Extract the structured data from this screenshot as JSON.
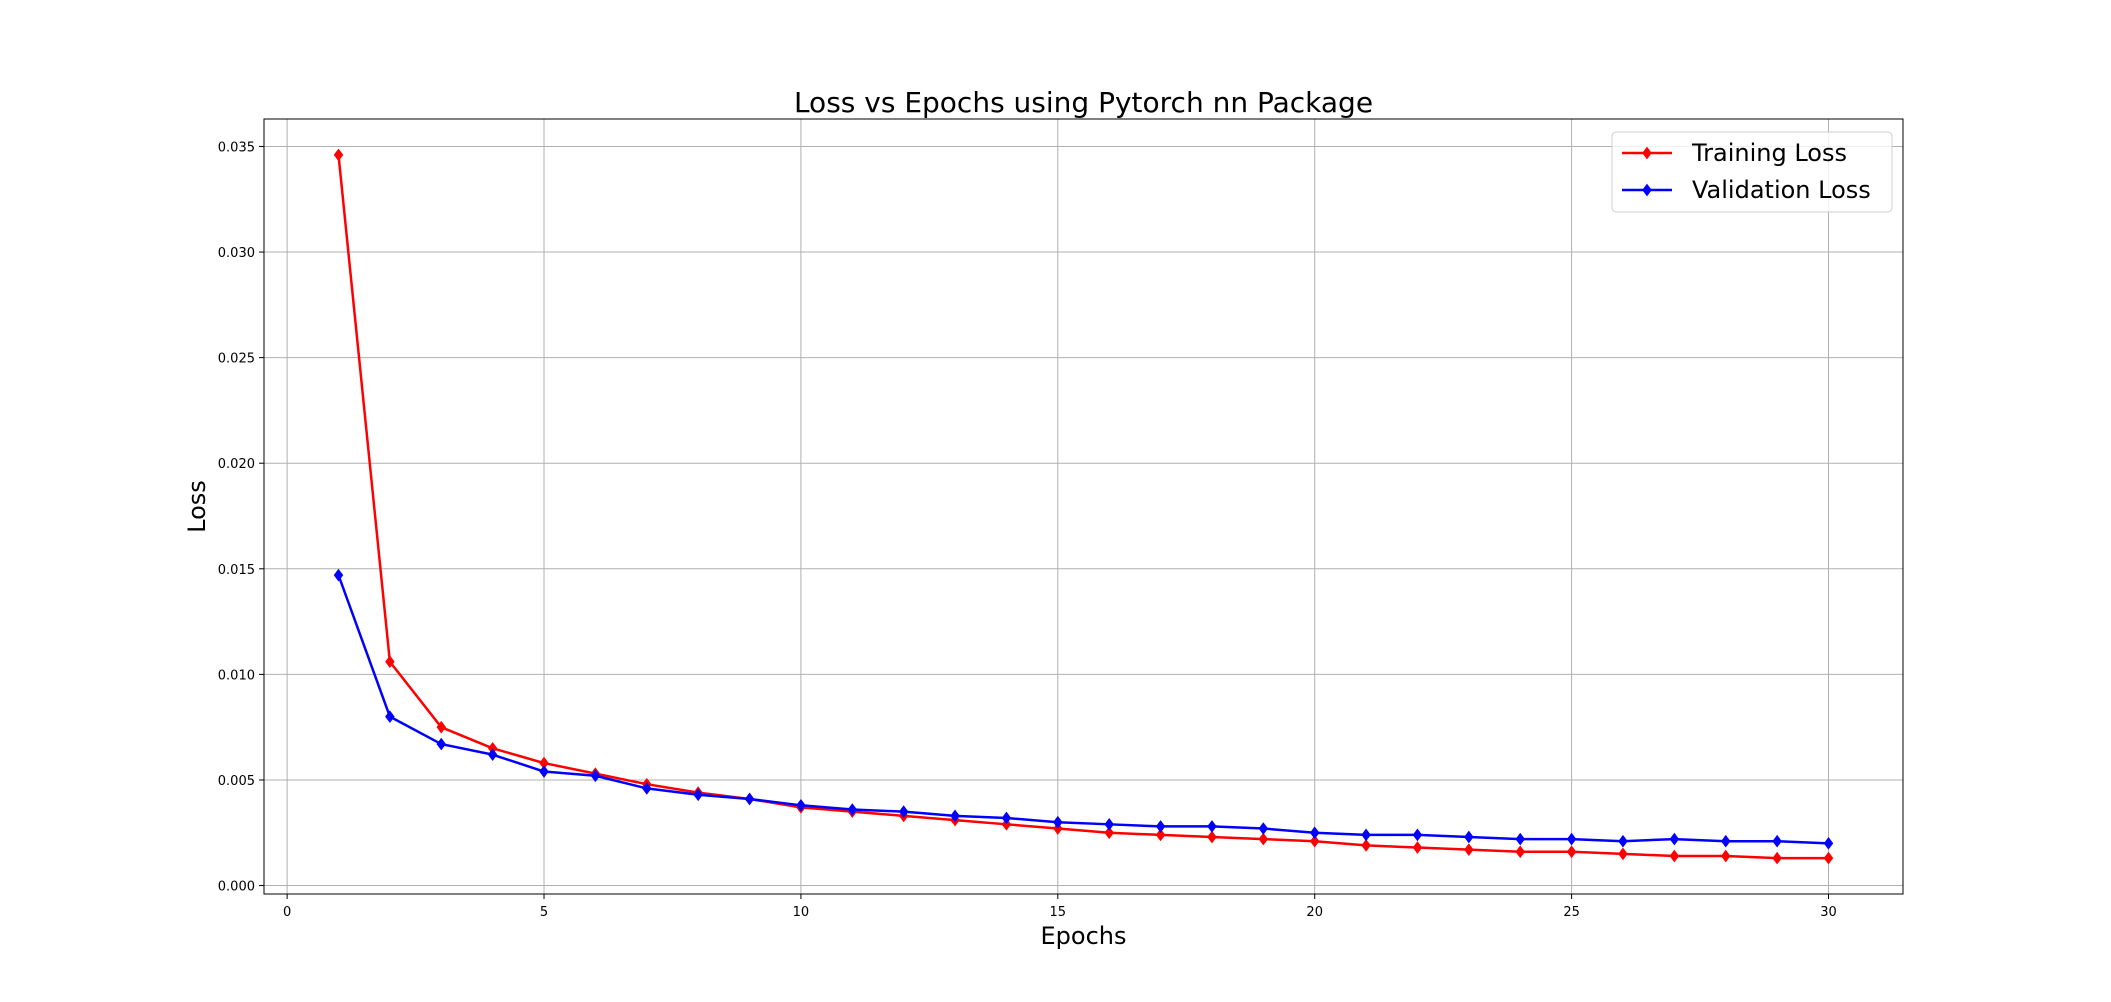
{
  "chart_data": {
    "type": "line",
    "title": "Loss vs Epochs using Pytorch nn Package",
    "xlabel": "Epochs",
    "ylabel": "Loss",
    "xlim": [
      -0.45,
      31.45
    ],
    "ylim": [
      -0.0004,
      0.0363
    ],
    "xticks": [
      0,
      5,
      10,
      15,
      20,
      25,
      30
    ],
    "xtick_labels": [
      "0",
      "5",
      "10",
      "15",
      "20",
      "25",
      "30"
    ],
    "yticks": [
      0.0,
      0.005,
      0.01,
      0.015,
      0.02,
      0.025,
      0.03,
      0.035
    ],
    "ytick_labels": [
      "0.000",
      "0.005",
      "0.010",
      "0.015",
      "0.020",
      "0.025",
      "0.030",
      "0.035"
    ],
    "grid": true,
    "legend_position": "top-right",
    "x": [
      1,
      2,
      3,
      4,
      5,
      6,
      7,
      8,
      9,
      10,
      11,
      12,
      13,
      14,
      15,
      16,
      17,
      18,
      19,
      20,
      21,
      22,
      23,
      24,
      25,
      26,
      27,
      28,
      29,
      30
    ],
    "series": [
      {
        "name": "Training Loss",
        "color": "#ff0000",
        "marker": "diamond",
        "values": [
          0.0346,
          0.0106,
          0.0075,
          0.0065,
          0.0058,
          0.0053,
          0.0048,
          0.0044,
          0.0041,
          0.0037,
          0.0035,
          0.0033,
          0.0031,
          0.0029,
          0.0027,
          0.0025,
          0.0024,
          0.0023,
          0.0022,
          0.0021,
          0.0019,
          0.0018,
          0.0017,
          0.0016,
          0.0016,
          0.0015,
          0.0014,
          0.0014,
          0.0013,
          0.0013
        ]
      },
      {
        "name": "Validation Loss",
        "color": "#0000ff",
        "marker": "diamond",
        "values": [
          0.0147,
          0.008,
          0.0067,
          0.0062,
          0.0054,
          0.0052,
          0.0046,
          0.0043,
          0.0041,
          0.0038,
          0.0036,
          0.0035,
          0.0033,
          0.0032,
          0.003,
          0.0029,
          0.0028,
          0.0028,
          0.0027,
          0.0025,
          0.0024,
          0.0024,
          0.0023,
          0.0022,
          0.0022,
          0.0021,
          0.0022,
          0.0021,
          0.0021,
          0.002
        ]
      }
    ]
  }
}
